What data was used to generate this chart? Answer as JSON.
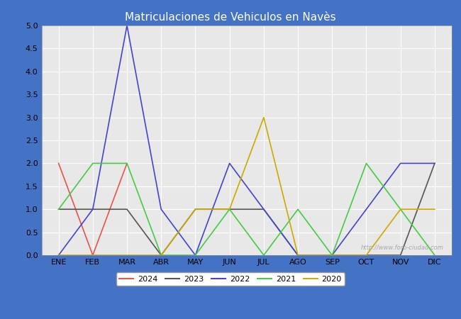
{
  "title": "Matriculaciones de Vehiculos en Navès",
  "months": [
    "ENE",
    "FEB",
    "MAR",
    "ABR",
    "MAY",
    "JUN",
    "JUL",
    "AGO",
    "SEP",
    "OCT",
    "NOV",
    "DIC"
  ],
  "series": {
    "2024": [
      2,
      0,
      2,
      null,
      null,
      null,
      null,
      null,
      null,
      null,
      null,
      null
    ],
    "2023": [
      1,
      1,
      1,
      0,
      1,
      1,
      1,
      0,
      0,
      0,
      0,
      2
    ],
    "2022": [
      0,
      1,
      5,
      1,
      0,
      2,
      1,
      0,
      0,
      1,
      2,
      2
    ],
    "2021": [
      1,
      2,
      2,
      0,
      0,
      1,
      0,
      1,
      0,
      2,
      1,
      0
    ],
    "2020": [
      0,
      0,
      0,
      0,
      1,
      1,
      3,
      0,
      0,
      0,
      1,
      1
    ]
  },
  "colors": {
    "2024": "#e8534a",
    "2023": "#555555",
    "2022": "#4444cc",
    "2021": "#44cc44",
    "2020": "#ccaa00"
  },
  "ylim": [
    0,
    5.0
  ],
  "yticks": [
    0.0,
    0.5,
    1.0,
    1.5,
    2.0,
    2.5,
    3.0,
    3.5,
    4.0,
    4.5,
    5.0
  ],
  "title_bg_color": "#4472C4",
  "title_text_color": "#ffffff",
  "plot_bg_color": "#e8e8e8",
  "grid_color": "#ffffff",
  "watermark": "http://www.foro-ciudad.com",
  "footer_bg_color": "#4472C4",
  "years_order": [
    "2024",
    "2023",
    "2022",
    "2021",
    "2020"
  ]
}
